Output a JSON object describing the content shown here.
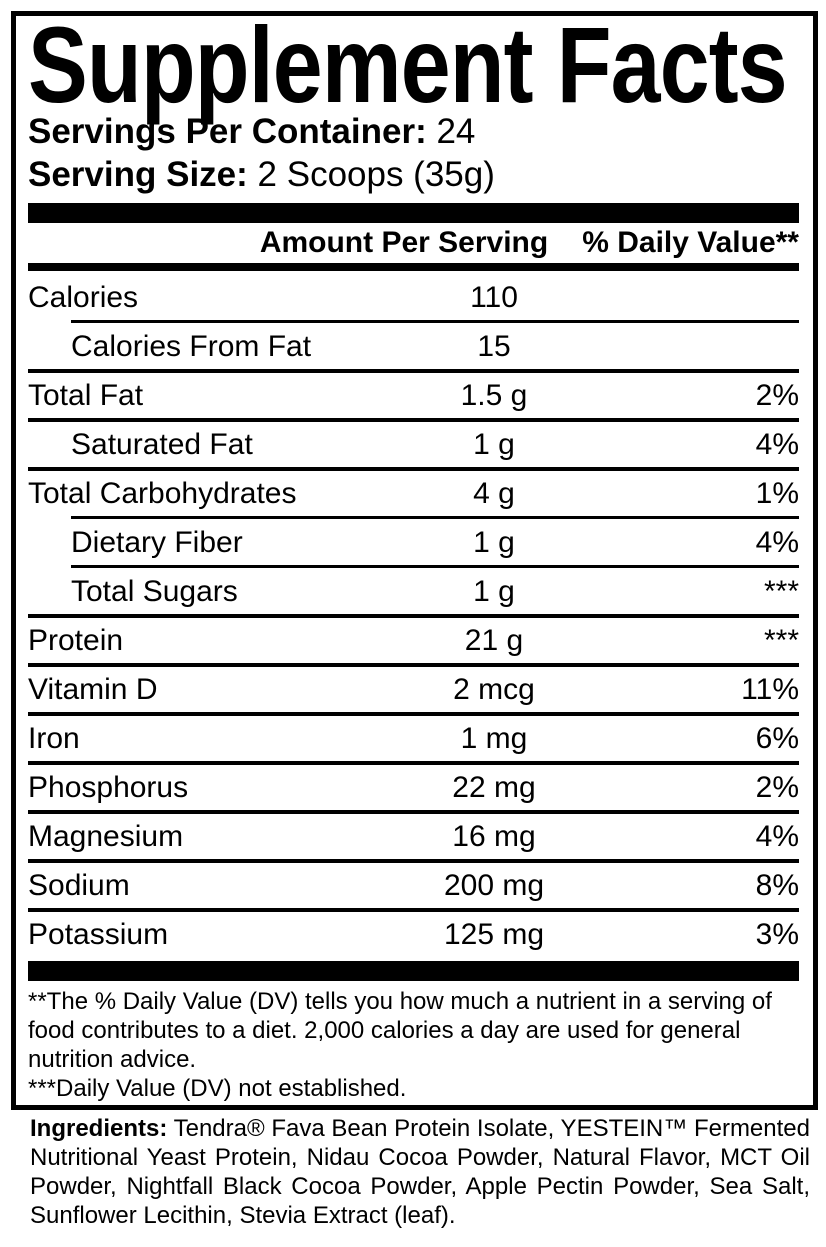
{
  "title": "Supplement Facts",
  "serving_info": {
    "servings_per_container": {
      "label": "Servings Per Container:",
      "value": "24"
    },
    "serving_size": {
      "label": "Serving Size:",
      "value": "2 Scoops (35g)"
    }
  },
  "table": {
    "columns": {
      "amount": "Amount Per Serving",
      "daily_value": "% Daily Value**"
    },
    "rows": [
      {
        "label": "Calories",
        "amount": "110",
        "dv": ""
      },
      {
        "label": "Calories From Fat",
        "amount": "15",
        "dv": ""
      },
      {
        "label": "Total Fat",
        "amount": "1.5 g",
        "dv": "2%"
      },
      {
        "label": "Saturated Fat",
        "amount": "1 g",
        "dv": "4%"
      },
      {
        "label": "Total Carbohydrates",
        "amount": "4 g",
        "dv": "1%"
      },
      {
        "label": "Dietary Fiber",
        "amount": "1 g",
        "dv": "4%"
      },
      {
        "label": "Total Sugars",
        "amount": "1 g",
        "dv": "***"
      },
      {
        "label": "Protein",
        "amount": "21 g",
        "dv": "***"
      },
      {
        "label": "Vitamin D",
        "amount": "2 mcg",
        "dv": "11%"
      },
      {
        "label": "Iron",
        "amount": "1 mg",
        "dv": "6%"
      },
      {
        "label": "Phosphorus",
        "amount": "22 mg",
        "dv": "2%"
      },
      {
        "label": "Magnesium",
        "amount": "16 mg",
        "dv": "4%"
      },
      {
        "label": "Sodium",
        "amount": "200 mg",
        "dv": "8%"
      },
      {
        "label": "Potassium",
        "amount": "125 mg",
        "dv": "3%"
      }
    ]
  },
  "footnotes": {
    "daily_value": "**The % Daily Value (DV) tells you how much a nutrient in a serving of food contributes to a diet. 2,000 calories a day are used for general nutrition advice.",
    "not_established": "***Daily Value (DV) not established."
  },
  "ingredients": {
    "label": "Ingredients:",
    "text": "Tendra® Fava Bean Protein Isolate, YESTEIN™ Fermented Nutritional Yeast Protein, Nidau Cocoa Powder, Natural Flavor, MCT Oil Powder, Nightfall Black Cocoa Powder, Apple Pectin Powder, Sea Salt, Sunflower Lecithin, Stevia Extract (leaf)."
  },
  "colors": {
    "ink": "#000000",
    "paper": "#ffffff"
  }
}
